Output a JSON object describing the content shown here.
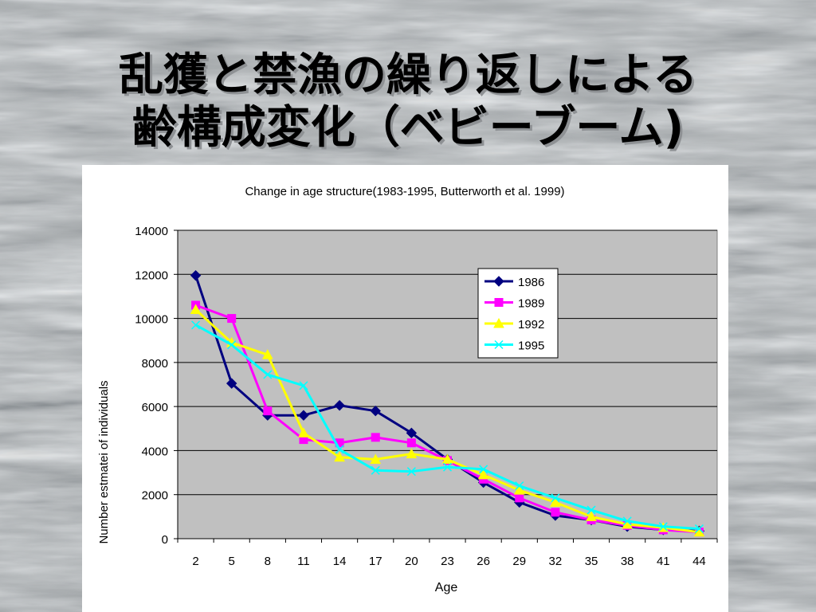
{
  "slide": {
    "title_line1": "乱獲と禁漁の繰り返しによる",
    "title_line2": "齢構成変化（ベビーブーム)"
  },
  "colors": {
    "plot_background": "#c0c0c0",
    "gridline": "#000000",
    "series_1986": "#000080",
    "series_1989": "#ff00ff",
    "series_1992": "#ffff00",
    "series_1995": "#00ffff"
  },
  "chart_data": {
    "type": "line",
    "title": "Change in age structure(1983-1995, Butterworth et al. 1999)",
    "xlabel": "Age",
    "ylabel": "Number estmatei of individuals",
    "categories": [
      "2",
      "5",
      "8",
      "11",
      "14",
      "17",
      "20",
      "23",
      "26",
      "29",
      "32",
      "35",
      "38",
      "41",
      "44"
    ],
    "ylim": [
      0,
      14000
    ],
    "yticks": [
      0,
      2000,
      4000,
      6000,
      8000,
      10000,
      12000,
      14000
    ],
    "grid": "horizontal",
    "legend_position": "inside-top-right",
    "series": [
      {
        "name": "1986",
        "marker": "diamond",
        "color": "#000080",
        "values": [
          11950,
          7050,
          5600,
          5600,
          6050,
          5800,
          4800,
          3600,
          2550,
          1650,
          1050,
          850,
          550,
          400,
          350
        ]
      },
      {
        "name": "1989",
        "marker": "square",
        "color": "#ff00ff",
        "values": [
          10600,
          10000,
          5800,
          4500,
          4350,
          4600,
          4350,
          3550,
          2700,
          1850,
          1200,
          850,
          600,
          400,
          300
        ]
      },
      {
        "name": "1992",
        "marker": "triangle",
        "color": "#ffff00",
        "values": [
          10400,
          8900,
          8350,
          4800,
          3700,
          3600,
          3850,
          3600,
          2900,
          2200,
          1650,
          1000,
          650,
          500,
          300
        ]
      },
      {
        "name": "1995",
        "marker": "x",
        "color": "#00ffff",
        "values": [
          9700,
          8800,
          7450,
          6950,
          4050,
          3100,
          3050,
          3250,
          3150,
          2400,
          1850,
          1300,
          800,
          550,
          450
        ]
      }
    ]
  }
}
